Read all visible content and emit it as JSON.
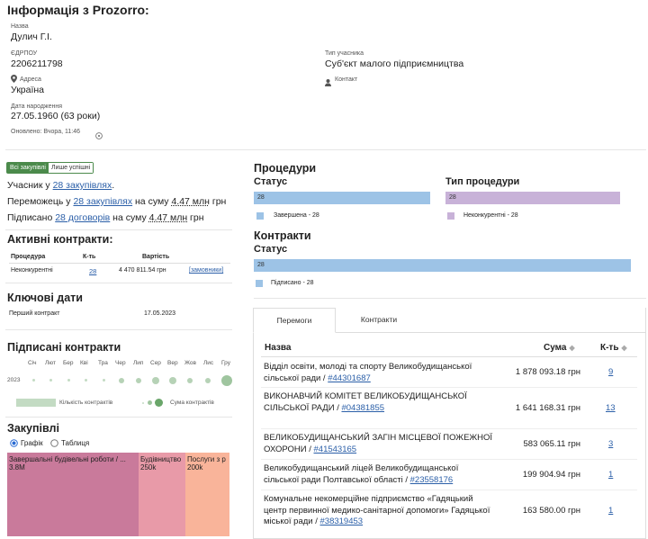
{
  "header": {
    "title": "Інформація з Prozorro:"
  },
  "info": {
    "name_label": "Назва",
    "name_value": "Дулич Г.І.",
    "edrpou_label": "ЄДРПОУ",
    "edrpou_value": "2206211798",
    "type_label": "Тип учасника",
    "type_value": "Суб'єкт малого підприємництва",
    "address_label": "Адреса",
    "address_value": "Україна",
    "contact_label": "Контакт",
    "birth_label": "Дата народження",
    "birth_value": "27.05.1960 (63 роки)",
    "updated": "Оновлено: Вчора, 11:46"
  },
  "filters": {
    "all": "Всі закупівлі",
    "success": "Лише успішні"
  },
  "summary": {
    "line1_prefix": "Учасник у ",
    "line1_link": "28 закупівлях",
    "line1_suffix": ".",
    "line2_prefix": "Переможець у ",
    "line2_link": "28 закупівлях",
    "line2_mid": " на суму ",
    "line2_amount": "4.47 млн",
    "line2_suffix": " грн",
    "line3_prefix": "Підписано ",
    "line3_link": "28 договорів",
    "line3_mid": " на суму ",
    "line3_amount": "4.47 млн",
    "line3_suffix": " грн"
  },
  "active_contracts": {
    "title": "Активні контракти:",
    "headers": [
      "Процедура",
      "К-ть",
      "Вартість"
    ],
    "row": {
      "procedure": "Неконкурентні",
      "count": "28",
      "value": "4 470 811.54 грн",
      "link": "[замовники]"
    }
  },
  "key_dates": {
    "title": "Ключові дати",
    "label": "Перший контракт",
    "value": "17.05.2023"
  },
  "signed": {
    "title": "Підписані контракти",
    "months": [
      "Січ",
      "Лют",
      "Бер",
      "Кві",
      "Тра",
      "Чер",
      "Лип",
      "Сер",
      "Вер",
      "Жов",
      "Лис",
      "Гру"
    ],
    "year": "2023",
    "legend_count": "Кількість контрактів",
    "legend_sum": "Сума контрактів"
  },
  "purchases": {
    "title": "Закупівлі",
    "radio_chart": "Графік",
    "radio_table": "Таблиця",
    "tiles": [
      {
        "label": "Завершальні будівельні роботи / ...",
        "value": "3.8M",
        "color": "#c97a9b"
      },
      {
        "label": "Будівництво",
        "value": "250k",
        "color": "#e89aa8"
      },
      {
        "label": "Послуги з р",
        "value": "200k",
        "color": "#f9b49a"
      }
    ]
  },
  "procedures": {
    "title": "Процедури",
    "status_title": "Статус",
    "status_value": "28",
    "status_legend": "Завершена - 28",
    "status_color": "#9dc3e6",
    "type_title": "Тип процедури",
    "type_value": "28",
    "type_legend": "Неконкурентні - 28",
    "type_color": "#c8b2d8"
  },
  "contracts": {
    "title": "Контракти",
    "status_title": "Статус",
    "status_value": "28",
    "status_legend": "Підписано - 28",
    "status_color": "#9dc3e6"
  },
  "tabs": {
    "wins": "Перемоги",
    "contracts": "Контракти"
  },
  "wins_table": {
    "headers": {
      "name": "Назва",
      "sum": "Сума",
      "count": "К-ть"
    },
    "rows": [
      {
        "name": "Відділ освіти, молоді та спорту Великобудищанської сільської ради / ",
        "code": "#44301687",
        "sum": "1 878 093.18 грн",
        "count": "9"
      },
      {
        "name": "ВИКОНАВЧИЙ КОМІТЕТ ВЕЛИКОБУДИЩАНСЬКОЇ СІЛЬСЬКОЇ РАДИ / ",
        "code": "#04381855",
        "sum": "1 641 168.31 грн",
        "count": "13"
      },
      {
        "name": "ВЕЛИКОБУДИЩАНСЬКИЙ ЗАГІН МІСЦЕВОЇ ПОЖЕЖНОЇ ОХОРОНИ / ",
        "code": "#41543165",
        "sum": "583 065.11 грн",
        "count": "3"
      },
      {
        "name": "Великобудищанський ліцей Великобудищанської сільської ради Полтавської області / ",
        "code": "#23558176",
        "sum": "199 904.94 грн",
        "count": "1"
      },
      {
        "name": "Комунальне некомерційне підприємство «Гадяцький центр первинної медико-санітарної допомоги» Гадяцької міської ради / ",
        "code": "#38319453",
        "sum": "163 580.00 грн",
        "count": "1"
      }
    ]
  }
}
